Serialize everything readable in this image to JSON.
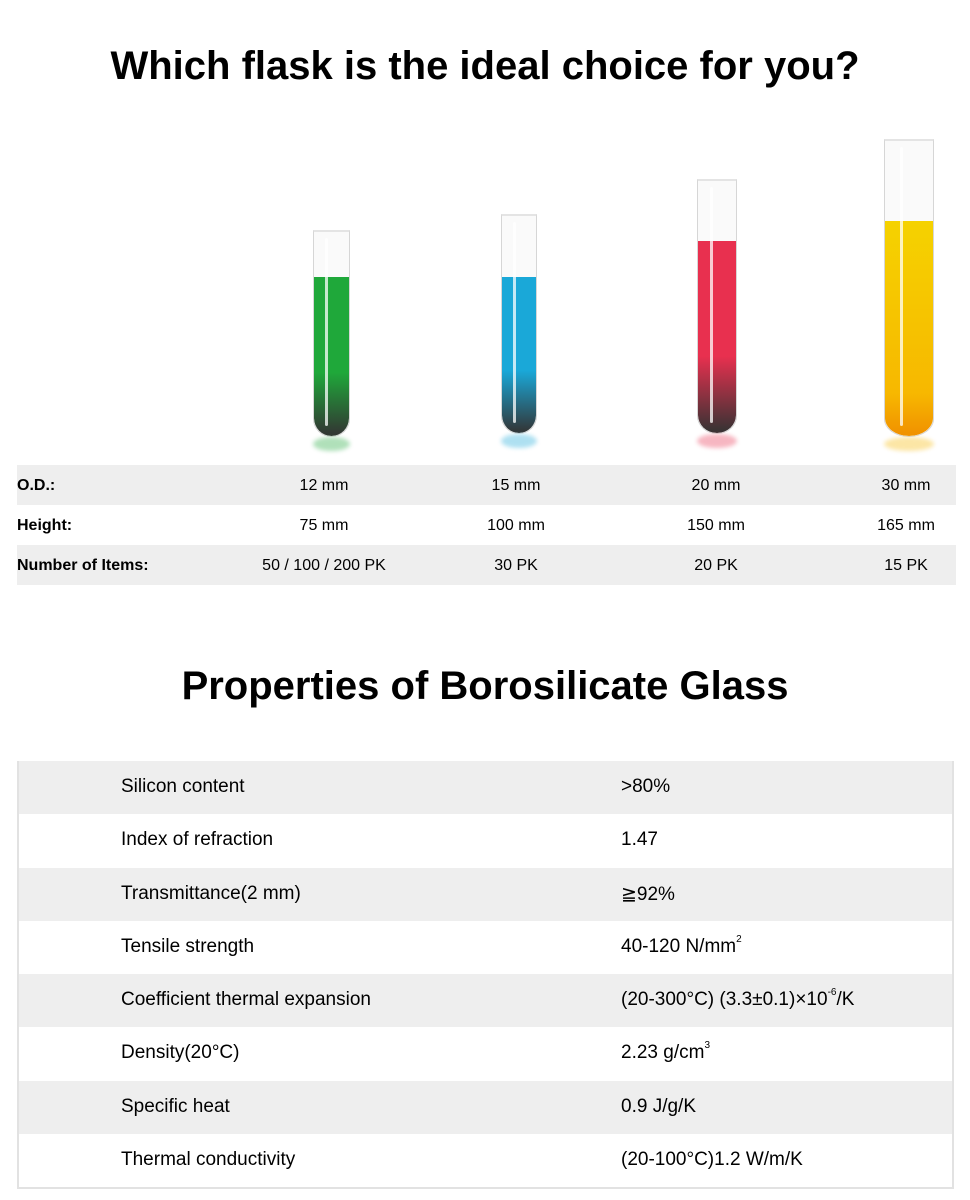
{
  "heading1": "Which flask is the ideal choice for you?",
  "heading2": "Properties of Borosilicate Glass",
  "tubes": [
    {
      "name": "green",
      "color": "#1fa83a",
      "fill_level": 0.78
    },
    {
      "name": "blue",
      "color": "#1aa8d8",
      "fill_level": 0.72
    },
    {
      "name": "red",
      "color": "#e8304f",
      "fill_level": 0.76
    },
    {
      "name": "yellow",
      "color": "#f7b800",
      "fill_level": 0.73
    }
  ],
  "specs": {
    "rows": [
      {
        "label": "O.D.:",
        "values": [
          "12 mm",
          "15 mm",
          "20 mm",
          "30 mm"
        ]
      },
      {
        "label": "Height:",
        "values": [
          "75 mm",
          "100 mm",
          "150 mm",
          "165 mm"
        ]
      },
      {
        "label": "Number of Items:",
        "values": [
          "50 / 100 / 200 PK",
          "30 PK",
          "20 PK",
          "15 PK"
        ]
      }
    ]
  },
  "properties": [
    {
      "label": "Silicon content",
      "value": ">80%"
    },
    {
      "label": "Index of refraction",
      "value": "1.47"
    },
    {
      "label": "Transmittance(2 mm)",
      "value": "≧92%"
    },
    {
      "label": "Tensile strength",
      "value": "40-120 N/mm",
      "sup": "2"
    },
    {
      "label": "Coefficient thermal expansion",
      "value": "(20-300°C) (3.3±0.1)×10",
      "sup": "-6",
      "suffix": "/K"
    },
    {
      "label": "Density(20°C)",
      "value": "2.23 g/cm",
      "sup": "3"
    },
    {
      "label": "Specific heat",
      "value": "0.9 J/g/K"
    },
    {
      "label": "Thermal conductivity",
      "value": "(20-100°C)1.2 W/m/K"
    }
  ]
}
